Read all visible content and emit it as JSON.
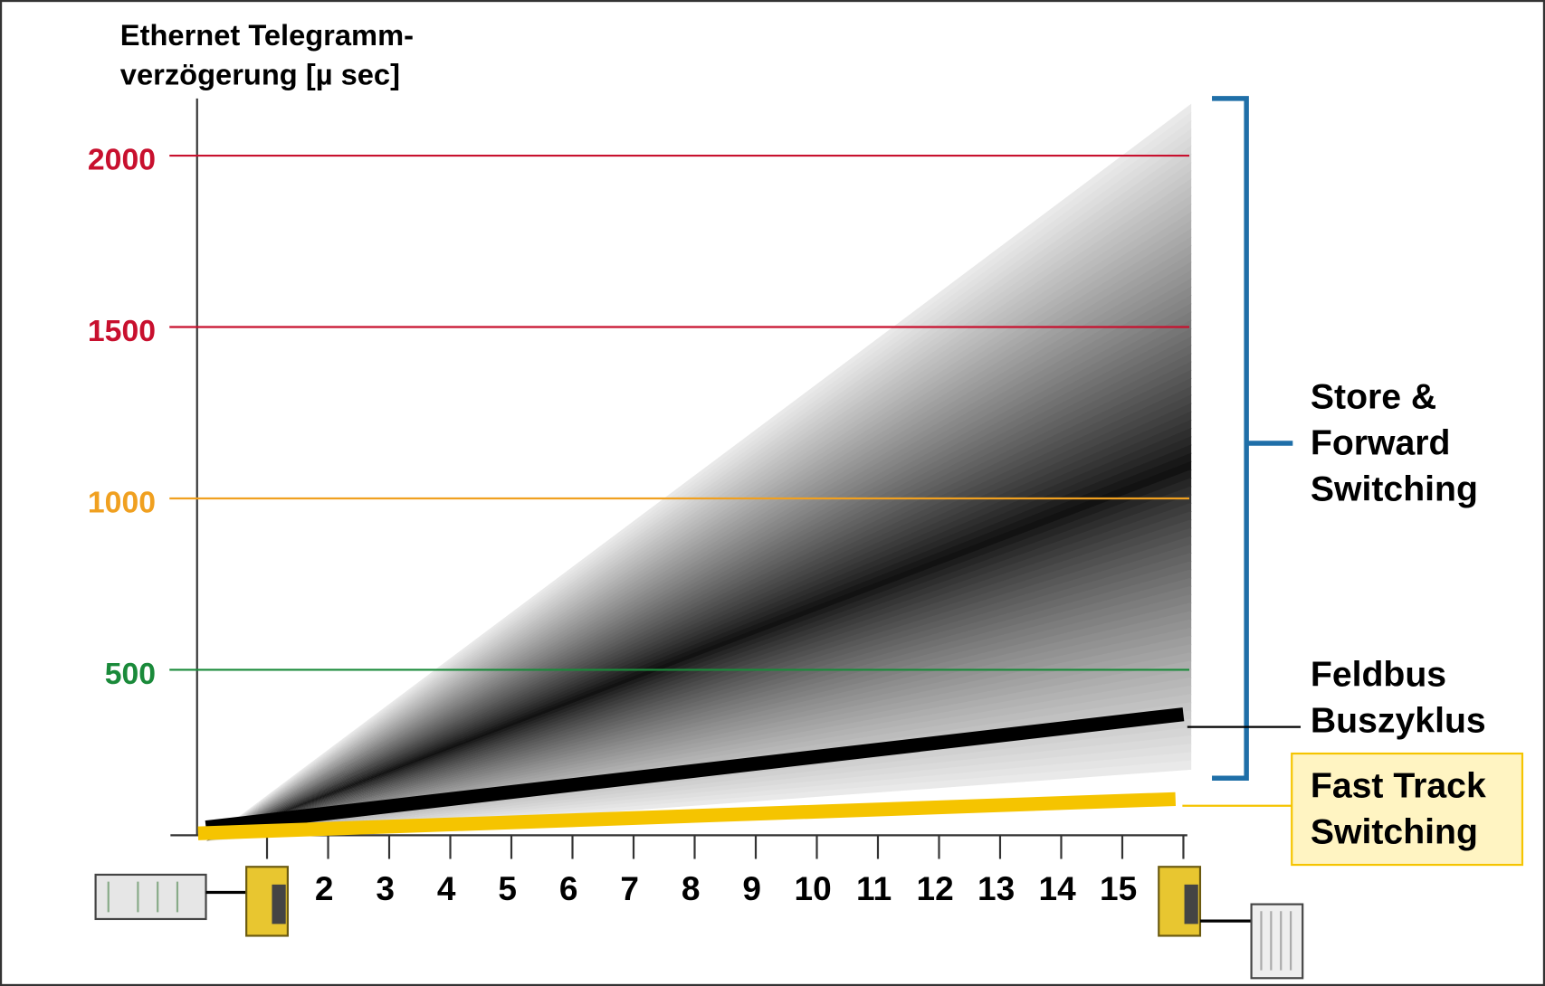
{
  "chart_data": {
    "type": "line",
    "title_lines": [
      "Ethernet Telegramm-",
      "verzögerung [µ sec]"
    ],
    "xlim": [
      0,
      16
    ],
    "xticks": [
      {
        "value": 1,
        "label": null
      },
      2,
      3,
      4,
      5,
      6,
      7,
      8,
      9,
      10,
      11,
      12,
      13,
      14,
      15,
      {
        "value": 16,
        "label": null
      }
    ],
    "ylim": [
      0,
      2000
    ],
    "yticks": [
      500,
      1000,
      1500,
      2000
    ],
    "ytick_colors": [
      "#1a8a3a",
      "#f0a020",
      "#c8102e",
      "#c8102e"
    ],
    "grid": true,
    "area": {
      "label_lines": [
        "Store &",
        "Forward",
        "Switching"
      ],
      "x": [
        0,
        16
      ],
      "upper": [
        0,
        2150
      ],
      "peak": [
        0,
        1100
      ],
      "lower": [
        0,
        210
      ],
      "color": "#000000"
    },
    "series": [
      {
        "name_lines": [
          "Feldbus",
          "Buszyklus"
        ],
        "color": "#000000",
        "x": [
          0,
          16
        ],
        "values": [
          0,
          330
        ]
      },
      {
        "name_lines": [
          "Fast Track",
          "Switching"
        ],
        "color": "#f5c400",
        "x": [
          0,
          16
        ],
        "values": [
          0,
          100
        ]
      }
    ]
  }
}
